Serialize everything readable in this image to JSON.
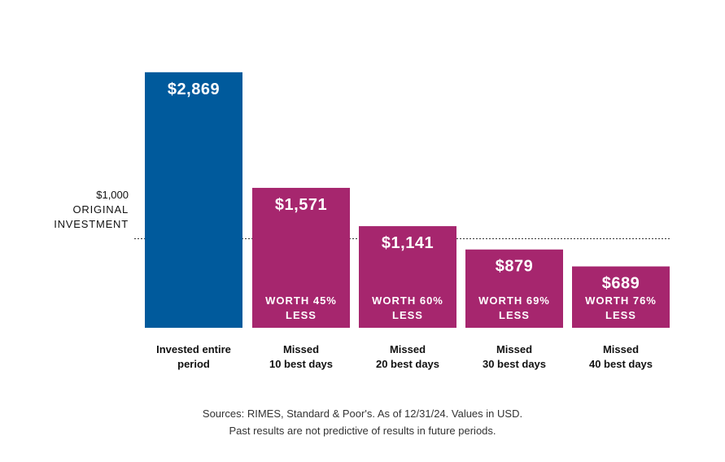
{
  "chart_data": {
    "type": "bar",
    "categories": [
      [
        "Invested entire",
        "period"
      ],
      [
        "Missed",
        "10 best days"
      ],
      [
        "Missed",
        "20 best days"
      ],
      [
        "Missed",
        "30 best days"
      ],
      [
        "Missed",
        "40 best days"
      ]
    ],
    "values": [
      2869,
      1571,
      1141,
      879,
      689
    ],
    "value_labels": [
      "$2,869",
      "$1,571",
      "$1,141",
      "$879",
      "$689"
    ],
    "inner_labels": [
      null,
      [
        "WORTH 45%",
        "LESS"
      ],
      [
        "WORTH 60%",
        "LESS"
      ],
      [
        "WORTH 69%",
        "LESS"
      ],
      [
        "WORTH 76%",
        "LESS"
      ]
    ],
    "bar_colors": [
      "#005A9C",
      "#A6266E",
      "#A6266E",
      "#A6266E",
      "#A6266E"
    ],
    "reference_line": {
      "value": 1000,
      "label": [
        "$1,000",
        "ORIGINAL",
        "INVESTMENT"
      ],
      "style": "dashed"
    },
    "ylim": [
      0,
      3260
    ],
    "title": "",
    "xlabel": "",
    "ylabel": "",
    "grid": false,
    "legend": "none"
  },
  "footer": {
    "sources_line": "Sources: RIMES, Standard & Poor's. As of 12/31/24. Values in USD.",
    "disclaimer_line": "Past results are not predictive of results in future periods."
  },
  "colors": {
    "text": "#111111",
    "reference_line": "#333333",
    "inner_label": "#ffffff"
  }
}
